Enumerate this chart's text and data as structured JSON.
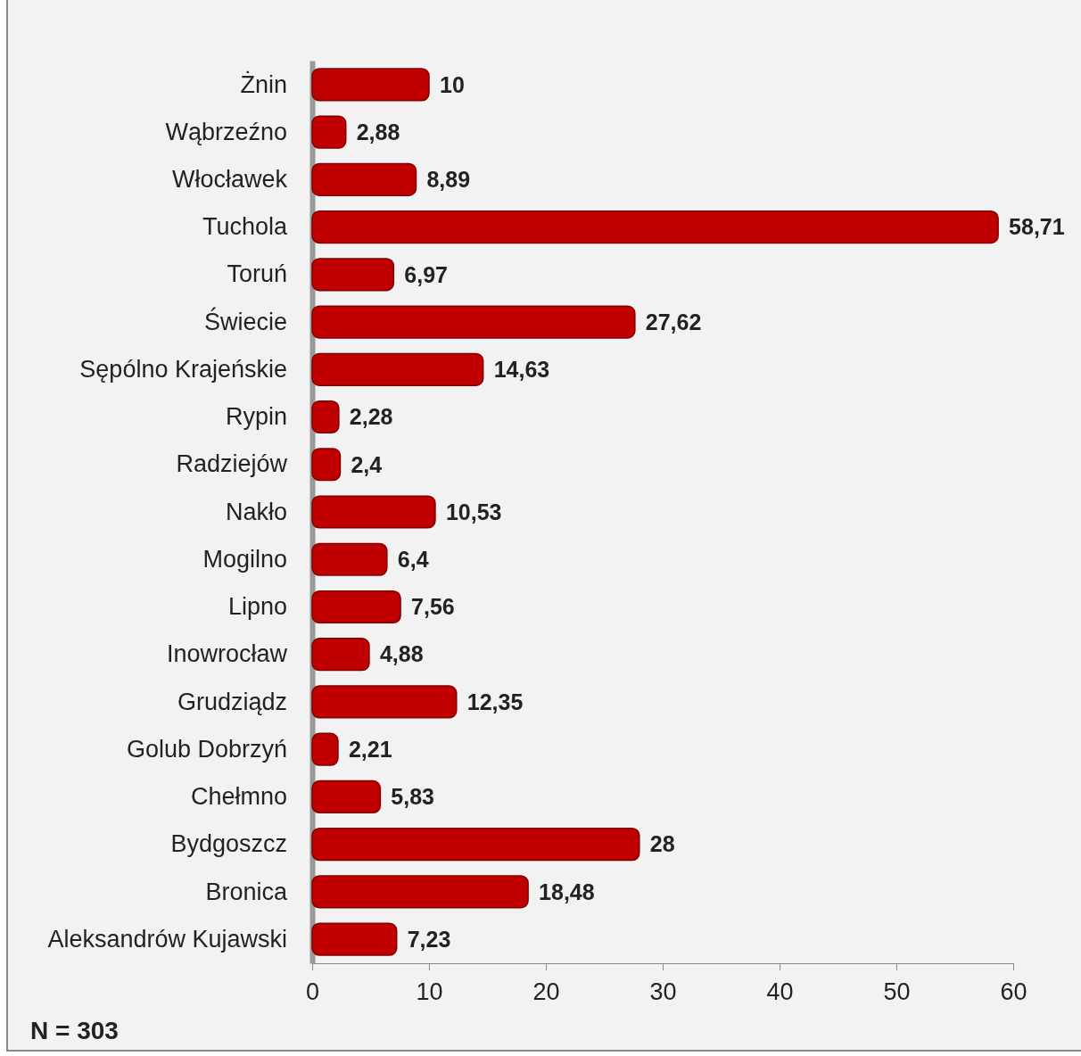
{
  "chart_data": {
    "type": "bar",
    "orientation": "horizontal",
    "categories": [
      "Żnin",
      "Wąbrzeźno",
      "Włocławek",
      "Tuchola",
      "Toruń",
      "Świecie",
      "Sępólno Krajeńskie",
      "Rypin",
      "Radziejów",
      "Nakło",
      "Mogilno",
      "Lipno",
      "Inowrocław",
      "Grudziądz",
      "Golub Dobrzyń",
      "Chełmno",
      "Bydgoszcz",
      "Bronica",
      "Aleksandrów Kujawski"
    ],
    "values": [
      10,
      2.88,
      8.89,
      58.71,
      6.97,
      27.62,
      14.63,
      2.28,
      2.4,
      10.53,
      6.4,
      7.56,
      4.88,
      12.35,
      2.21,
      5.83,
      28,
      18.48,
      7.23
    ],
    "value_labels": [
      "10",
      "2,88",
      "8,89",
      "58,71",
      "6,97",
      "27,62",
      "14,63",
      "2,28",
      "2,4",
      "10,53",
      "6,4",
      "7,56",
      "4,88",
      "12,35",
      "2,21",
      "5,83",
      "28",
      "18,48",
      "7,23"
    ],
    "color": "#c00000",
    "xlim": [
      0,
      60
    ],
    "xticks": [
      0,
      10,
      20,
      30,
      40,
      50,
      60
    ],
    "grid": false,
    "annotations": [
      "N = 303"
    ]
  }
}
